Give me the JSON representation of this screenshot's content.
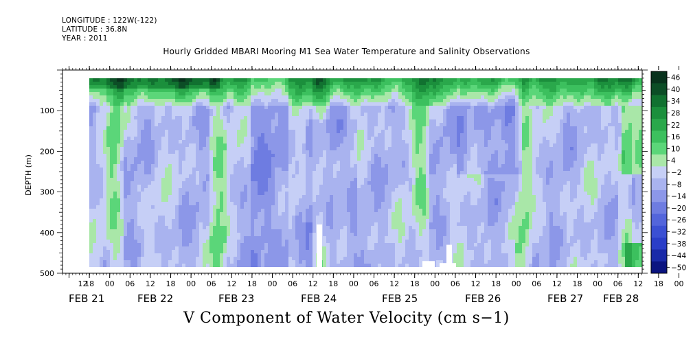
{
  "header": {
    "longitude": "LONGITUDE : 122W(-122)",
    "latitude": "LATITUDE : 36.8N",
    "year": "YEAR : 2011"
  },
  "title": "Hourly Gridded MBARI Mooring M1 Sea Water Temperature and Salinity Observations",
  "footer": "V Component of Water Velocity (cm s−1)",
  "chart_data": {
    "type": "heatmap",
    "title": "Hourly Gridded MBARI Mooring M1 Sea Water Temperature and Salinity Observations",
    "xlabel": "",
    "ylabel": "DEPTH (m)",
    "variable": "V Component of Water Velocity (cm s−1)",
    "x_hour_ticks": [
      "12",
      "18",
      "00",
      "06",
      "12",
      "18",
      "00",
      "06",
      "12",
      "18",
      "00",
      "06",
      "12",
      "18",
      "00",
      "06",
      "12",
      "18",
      "00",
      "06",
      "12",
      "18",
      "00",
      "06",
      "12",
      "18",
      "00",
      "06",
      "12",
      "18",
      "00",
      "06"
    ],
    "x_date_labels": [
      "FEB 21",
      "FEB 22",
      "FEB 23",
      "FEB 24",
      "FEB 25",
      "FEB 26",
      "FEB 27",
      "FEB 28"
    ],
    "y_ticks": [
      100,
      200,
      300,
      400,
      500
    ],
    "y_ticklabels": [
      "100",
      "200",
      "300",
      "400",
      "500"
    ],
    "ylim": [
      500,
      0
    ],
    "y_reversed": true,
    "data_depth_range": [
      20,
      485
    ],
    "colorbar": {
      "levels": [
        46,
        40,
        34,
        28,
        22,
        16,
        10,
        4,
        -2,
        -8,
        -14,
        -20,
        -26,
        -32,
        -38,
        -44,
        -50
      ],
      "labels": [
        "46",
        "40",
        "34",
        "28",
        "22",
        "16",
        "10",
        "4",
        "−2",
        "−8",
        "−14",
        "−20",
        "−26",
        "−32",
        "−38",
        "−44",
        "−50"
      ],
      "colors": [
        "#08321c",
        "#0c4d26",
        "#117130",
        "#1b8f3c",
        "#2aa84b",
        "#3cc05e",
        "#5bd679",
        "#a9e7a8",
        "#c6cff6",
        "#a9b3ef",
        "#8c97e8",
        "#6e7ce1",
        "#5365db",
        "#3b50d3",
        "#2a3ec8",
        "#1a2aa8",
        "#0b1480"
      ]
    },
    "pattern_notes": "Near-surface band (20-80 m) mostly green (positive); deeper column mostly light blue/periwinkle (slightly negative) with interleaved green vertical streaks; blue (more negative) cores near FEB 23 and FEB 24-26; missing-data white gaps near FEB 24 and FEB 25-26 at depth."
  }
}
